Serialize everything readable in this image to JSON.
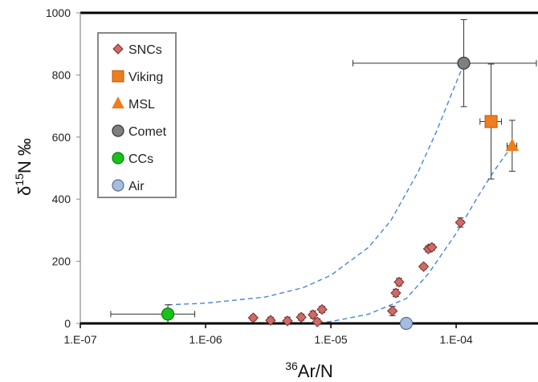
{
  "chart_data": {
    "type": "scatter",
    "xscale": "log",
    "xlim": [
      1e-07,
      0.00045
    ],
    "ylim": [
      0,
      1000
    ],
    "xticks": [
      {
        "value": 1e-07,
        "label": "1.E-07"
      },
      {
        "value": 1e-06,
        "label": "1.E-06"
      },
      {
        "value": 1e-05,
        "label": "1.E-05"
      },
      {
        "value": 0.0001,
        "label": "1.E-04"
      }
    ],
    "yticks": [
      {
        "value": 0,
        "label": "0"
      },
      {
        "value": 200,
        "label": "200"
      },
      {
        "value": 400,
        "label": "400"
      },
      {
        "value": 600,
        "label": "600"
      },
      {
        "value": 800,
        "label": "800"
      },
      {
        "value": 1000,
        "label": "1000"
      }
    ],
    "xlabel_sup": "36",
    "xlabel_main": "Ar/N",
    "ylabel_pre": "δ",
    "ylabel_sup": "15",
    "ylabel_main": "N ‰",
    "grid": false,
    "legend_position": "top-left",
    "series": [
      {
        "name": "SNCs",
        "marker": "diamond",
        "color": "#cd6b66",
        "edge": "#7a2e2a",
        "points": [
          {
            "x": 2.4e-06,
            "y": 18,
            "yerr": 8
          },
          {
            "x": 3.3e-06,
            "y": 10,
            "yerr": 10
          },
          {
            "x": 4.5e-06,
            "y": 8,
            "yerr": 12
          },
          {
            "x": 5.8e-06,
            "y": 20,
            "yerr": 10
          },
          {
            "x": 7.2e-06,
            "y": 28,
            "yerr": 12
          },
          {
            "x": 7.8e-06,
            "y": 5,
            "yerr": 10
          },
          {
            "x": 8.5e-06,
            "y": 45,
            "yerr": 10
          },
          {
            "x": 3.1e-05,
            "y": 40,
            "yerr": 15
          },
          {
            "x": 3.3e-05,
            "y": 98,
            "yerr": 12
          },
          {
            "x": 3.5e-05,
            "y": 133,
            "yerr": 12
          },
          {
            "x": 5.5e-05,
            "y": 183,
            "yerr": 8
          },
          {
            "x": 6e-05,
            "y": 240,
            "yerr": 10
          },
          {
            "x": 6.4e-05,
            "y": 245,
            "yerr": 10
          },
          {
            "x": 0.000108,
            "y": 325,
            "yerr": 15
          }
        ]
      },
      {
        "name": "Viking",
        "marker": "square",
        "color": "#ed7d1f",
        "edge": "#b85a0a",
        "points": [
          {
            "x": 0.00019,
            "y": 650,
            "yerr": 185,
            "xerr_lo": 0.000155,
            "xerr_hi": 0.00023
          }
        ]
      },
      {
        "name": "MSL",
        "marker": "triangle",
        "color": "#ed7d1f",
        "edge": "#ed7d1f",
        "points": [
          {
            "x": 0.00028,
            "y": 572,
            "yerr": 82,
            "xerr_lo": 0.000255,
            "xerr_hi": 0.000305
          }
        ]
      },
      {
        "name": "Comet",
        "marker": "circle",
        "color": "#7f7f7f",
        "edge": "#333333",
        "points": [
          {
            "x": 0.000115,
            "y": 838,
            "yerr": 140,
            "xerr_lo": 1.5e-05,
            "xerr_hi": 0.00045
          }
        ]
      },
      {
        "name": "CCs",
        "marker": "circle",
        "color": "#19c219",
        "edge": "#0d7a0d",
        "points": [
          {
            "x": 5e-07,
            "y": 30,
            "yerr": 30,
            "xerr_lo": 1.75e-07,
            "xerr_hi": 8.2e-07
          }
        ]
      },
      {
        "name": "Air",
        "marker": "circle",
        "color": "#a6bde0",
        "edge": "#5a6f93",
        "points": [
          {
            "x": 4e-05,
            "y": 0
          }
        ]
      }
    ],
    "curves": [
      {
        "color": "#4a86d0",
        "points": [
          [
            5e-07,
            60
          ],
          [
            1e-06,
            65
          ],
          [
            3e-06,
            85
          ],
          [
            6e-06,
            115
          ],
          [
            1e-05,
            155
          ],
          [
            2e-05,
            245
          ],
          [
            3e-05,
            330
          ],
          [
            5e-05,
            490
          ],
          [
            7e-05,
            620
          ],
          [
            9e-05,
            730
          ],
          [
            0.000115,
            835
          ]
        ]
      },
      {
        "color": "#4a86d0",
        "points": [
          [
            8e-06,
            0
          ],
          [
            1.2e-05,
            12
          ],
          [
            2e-05,
            30
          ],
          [
            4e-05,
            80
          ],
          [
            6e-05,
            160
          ],
          [
            0.0001,
            290
          ],
          [
            0.00015,
            410
          ],
          [
            0.0002,
            490
          ],
          [
            0.00025,
            545
          ],
          [
            0.00028,
            572
          ]
        ]
      }
    ]
  }
}
